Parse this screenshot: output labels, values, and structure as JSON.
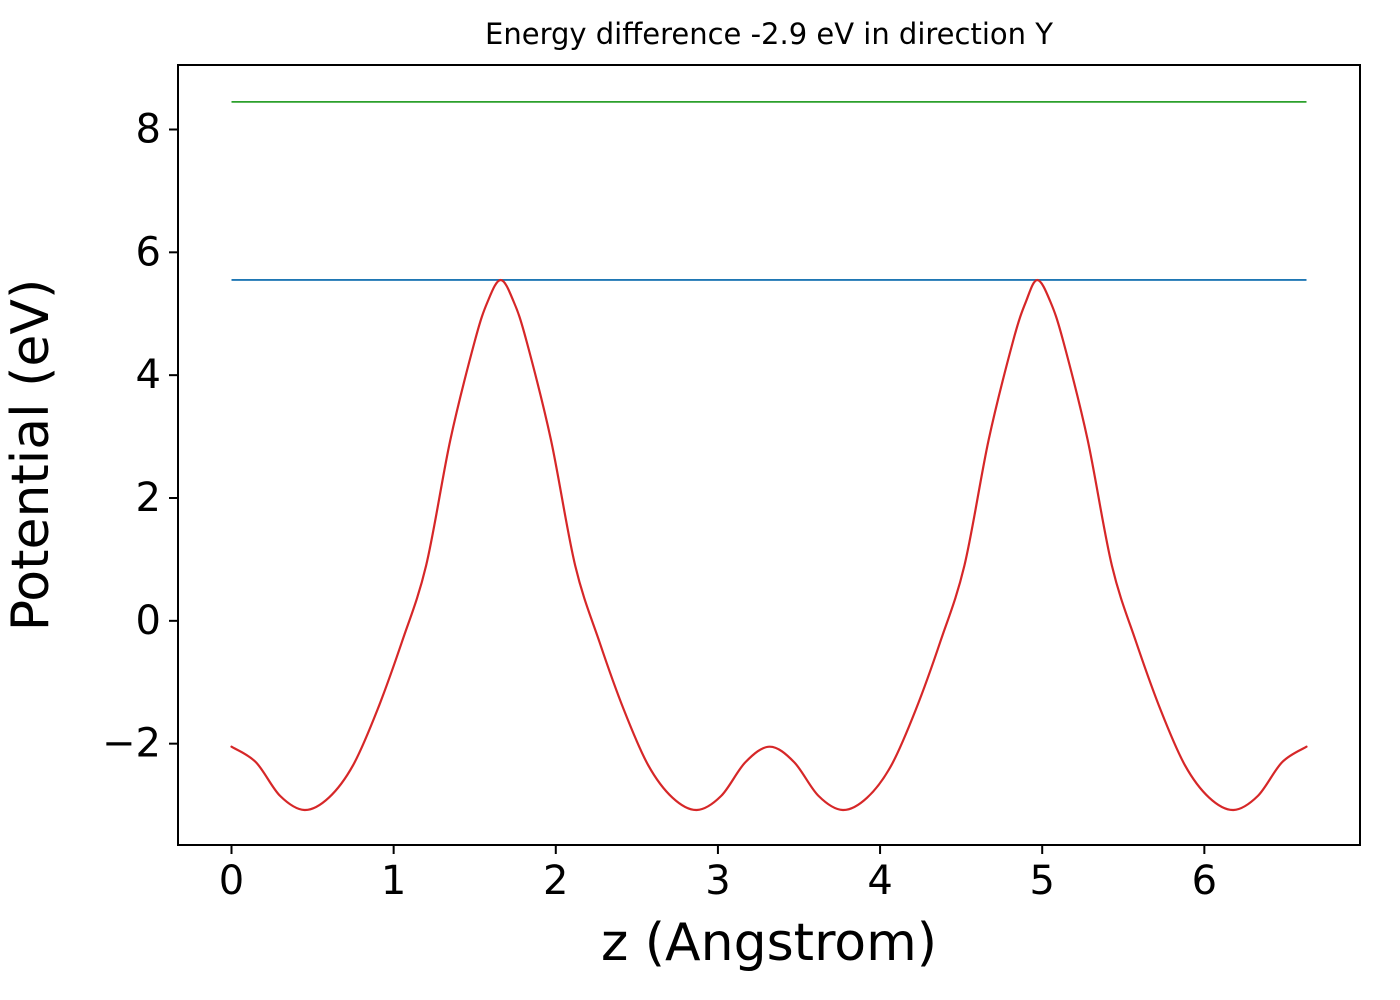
{
  "figure": {
    "background": "#ffffff",
    "text_color": "#000000"
  },
  "chart_data": {
    "type": "line",
    "title": "Energy difference -2.9 eV in direction Y",
    "xlabel": "z (Angstrom)",
    "ylabel": "Potential (eV)",
    "xlim": [
      -0.33,
      6.96
    ],
    "ylim": [
      -3.65,
      9.05
    ],
    "x_ticks": [
      0,
      1,
      2,
      3,
      4,
      5,
      6
    ],
    "y_ticks": [
      -2,
      0,
      2,
      4,
      6,
      8
    ],
    "grid": false,
    "legend": "none",
    "series": [
      {
        "name": "upper-energy-level",
        "type": "hline",
        "color": "#2ca02c",
        "y": 8.45,
        "x_start": 0,
        "x_end": 6.63
      },
      {
        "name": "lower-energy-level",
        "type": "hline",
        "color": "#1f77b4",
        "y": 5.55,
        "x_start": 0,
        "x_end": 6.63
      },
      {
        "name": "potential-curve",
        "type": "curve",
        "color": "#d62728",
        "points": [
          [
            0.0,
            -2.05
          ],
          [
            0.15,
            -2.3
          ],
          [
            0.3,
            -2.85
          ],
          [
            0.45,
            -3.08
          ],
          [
            0.6,
            -2.88
          ],
          [
            0.75,
            -2.35
          ],
          [
            0.9,
            -1.45
          ],
          [
            1.05,
            -0.35
          ],
          [
            1.2,
            0.9
          ],
          [
            1.35,
            2.95
          ],
          [
            1.5,
            4.55
          ],
          [
            1.58,
            5.2
          ],
          [
            1.66,
            5.55
          ],
          [
            1.74,
            5.2
          ],
          [
            1.82,
            4.55
          ],
          [
            1.97,
            2.95
          ],
          [
            2.12,
            0.9
          ],
          [
            2.27,
            -0.35
          ],
          [
            2.42,
            -1.45
          ],
          [
            2.57,
            -2.35
          ],
          [
            2.72,
            -2.88
          ],
          [
            2.87,
            -3.08
          ],
          [
            3.02,
            -2.85
          ],
          [
            3.17,
            -2.3
          ],
          [
            3.32,
            -2.05
          ],
          [
            3.47,
            -2.3
          ],
          [
            3.62,
            -2.85
          ],
          [
            3.77,
            -3.08
          ],
          [
            3.92,
            -2.88
          ],
          [
            4.07,
            -2.35
          ],
          [
            4.22,
            -1.45
          ],
          [
            4.37,
            -0.35
          ],
          [
            4.52,
            0.9
          ],
          [
            4.67,
            2.95
          ],
          [
            4.82,
            4.55
          ],
          [
            4.9,
            5.2
          ],
          [
            4.97,
            5.55
          ],
          [
            5.05,
            5.2
          ],
          [
            5.13,
            4.55
          ],
          [
            5.28,
            2.95
          ],
          [
            5.43,
            0.9
          ],
          [
            5.58,
            -0.35
          ],
          [
            5.73,
            -1.45
          ],
          [
            5.88,
            -2.35
          ],
          [
            6.03,
            -2.88
          ],
          [
            6.18,
            -3.08
          ],
          [
            6.33,
            -2.85
          ],
          [
            6.48,
            -2.3
          ],
          [
            6.63,
            -2.05
          ]
        ]
      }
    ]
  }
}
